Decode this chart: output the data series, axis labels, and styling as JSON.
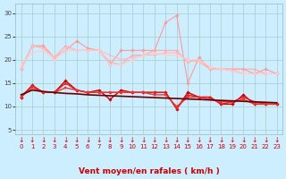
{
  "x": [
    0,
    1,
    2,
    3,
    4,
    5,
    6,
    7,
    8,
    9,
    10,
    11,
    12,
    13,
    14,
    15,
    16,
    17,
    18,
    19,
    20,
    21,
    22,
    23
  ],
  "series": [
    {
      "name": "line1_light",
      "color": "#ff9999",
      "lw": 0.8,
      "marker": "D",
      "markersize": 1.8,
      "values": [
        18,
        23,
        23,
        20.5,
        22,
        24,
        22.5,
        22,
        19,
        22,
        22,
        22,
        22,
        28,
        29.5,
        15,
        20.5,
        18,
        18,
        18,
        18,
        17,
        18,
        17
      ]
    },
    {
      "name": "line2_light",
      "color": "#ffaaaa",
      "lw": 0.8,
      "marker": "^",
      "markersize": 1.8,
      "values": [
        18,
        23,
        22.5,
        20.5,
        23,
        22,
        22,
        22,
        19.5,
        19,
        21,
        21,
        22,
        22,
        22,
        19.5,
        20,
        18,
        18,
        18,
        18,
        18,
        17,
        17
      ]
    },
    {
      "name": "line3_light",
      "color": "#ffbbbb",
      "lw": 0.8,
      "marker": "s",
      "markersize": 1.8,
      "values": [
        18,
        23,
        22.5,
        20.5,
        22,
        22,
        22,
        22,
        21,
        20,
        20.5,
        21,
        21,
        21.5,
        21.5,
        20,
        19.5,
        18,
        18,
        18,
        17,
        17,
        17,
        17
      ]
    },
    {
      "name": "line4_light",
      "color": "#ffcccc",
      "lw": 0.8,
      "marker": "o",
      "markersize": 1.8,
      "values": [
        19,
        21.5,
        22,
        20,
        22,
        22,
        22,
        22,
        19,
        19,
        20,
        21,
        21.5,
        21,
        21,
        20,
        20,
        18.5,
        18,
        17.5,
        17,
        17,
        17,
        17
      ]
    },
    {
      "name": "line5_dark",
      "color": "#cc0000",
      "lw": 1.0,
      "marker": "D",
      "markersize": 1.8,
      "values": [
        12,
        14.5,
        13,
        13,
        15.5,
        13.5,
        13,
        13.5,
        11.5,
        13.5,
        13,
        13,
        13,
        13,
        9.5,
        13,
        12,
        12,
        10.5,
        10.5,
        12.5,
        10.5,
        10.5,
        10.5
      ]
    },
    {
      "name": "line6_dark",
      "color": "#dd2222",
      "lw": 1.0,
      "marker": "^",
      "markersize": 1.8,
      "values": [
        12,
        14.5,
        13,
        13,
        15,
        13.5,
        13,
        13,
        13,
        13,
        13,
        13,
        13,
        13,
        9.5,
        12.5,
        12,
        12,
        10.5,
        11,
        12,
        11,
        10.5,
        10.5
      ]
    },
    {
      "name": "line7_dark",
      "color": "#ee3333",
      "lw": 1.0,
      "marker": "s",
      "markersize": 1.8,
      "values": [
        12,
        14,
        13,
        13,
        14,
        13.5,
        13,
        13,
        13,
        13,
        13,
        13,
        12.5,
        12.5,
        10,
        12,
        12,
        11.5,
        11,
        11,
        11.5,
        10.5,
        10.5,
        10.5
      ]
    },
    {
      "name": "line8_trend",
      "color": "#660000",
      "lw": 1.2,
      "marker": "None",
      "markersize": 0,
      "values": [
        12.5,
        13.5,
        13.2,
        13.0,
        12.8,
        12.7,
        12.5,
        12.4,
        12.3,
        12.2,
        12.1,
        12.0,
        11.9,
        11.8,
        11.7,
        11.6,
        11.5,
        11.4,
        11.3,
        11.2,
        11.1,
        11.0,
        10.9,
        10.8
      ]
    }
  ],
  "arrow_color": "#cc0000",
  "xlabel": "Vent moyen/en rafales ( km/h )",
  "xlabel_fontsize": 6.5,
  "xlabel_color": "#cc0000",
  "ylabel_ticks": [
    5,
    10,
    15,
    20,
    25,
    30
  ],
  "xtick_labels": [
    "0",
    "1",
    "2",
    "3",
    "4",
    "5",
    "6",
    "7",
    "8",
    "9",
    "10",
    "11",
    "12",
    "13",
    "14",
    "15",
    "16",
    "17",
    "18",
    "19",
    "20",
    "21",
    "22",
    "23"
  ],
  "ylim": [
    4,
    32
  ],
  "xlim": [
    -0.5,
    23.5
  ],
  "bg_color": "#cceeff",
  "grid_color": "#aacccc",
  "tick_fontsize": 5.0
}
